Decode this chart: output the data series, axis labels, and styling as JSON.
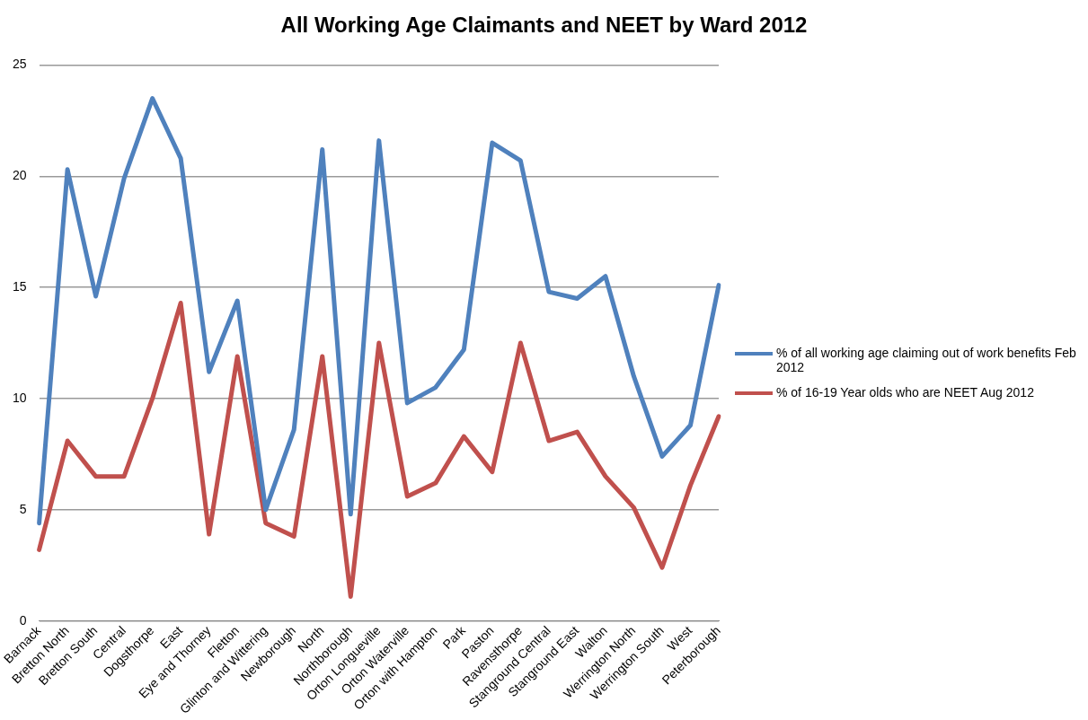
{
  "chart_data": {
    "type": "line",
    "title": "All Working Age Claimants and NEET by Ward 2012",
    "categories": [
      "Barnack",
      "Bretton North",
      "Bretton South",
      "Central",
      "Dogsthorpe",
      "East",
      "Eye and Thorney",
      "Fletton",
      "Glinton and Wittering",
      "Newborough",
      "North",
      "Northborough",
      "Orton Longueville",
      "Orton Waterville",
      "Orton with Hampton",
      "Park",
      "Paston",
      "Ravensthorpe",
      "Stanground Central",
      "Stanground East",
      "Walton",
      "Werrington North",
      "Werrington South",
      "West",
      "Peterborough"
    ],
    "series": [
      {
        "name": "% of all working age claiming out of work benefits Feb 2012",
        "color": "#4f81bd",
        "values": [
          4.4,
          20.3,
          14.6,
          19.9,
          23.5,
          20.8,
          11.2,
          14.4,
          5.0,
          8.6,
          21.2,
          4.8,
          21.6,
          9.8,
          10.5,
          12.2,
          21.5,
          20.7,
          14.8,
          14.5,
          15.5,
          11.0,
          7.4,
          8.8,
          15.1
        ]
      },
      {
        "name": "% of 16-19 Year olds who are NEET Aug 2012",
        "color": "#c0504d",
        "values": [
          3.2,
          8.1,
          6.5,
          6.5,
          10.0,
          14.3,
          3.9,
          11.9,
          4.4,
          3.8,
          11.9,
          1.1,
          12.5,
          5.6,
          6.2,
          8.3,
          6.7,
          12.5,
          8.1,
          8.5,
          6.5,
          5.1,
          2.4,
          6.1,
          9.2
        ]
      }
    ],
    "ylim": [
      0,
      25
    ],
    "yticks": [
      0,
      5,
      10,
      15,
      20,
      25
    ],
    "grid": "y",
    "legend": "right",
    "marker": "none",
    "line_style": "solid"
  }
}
